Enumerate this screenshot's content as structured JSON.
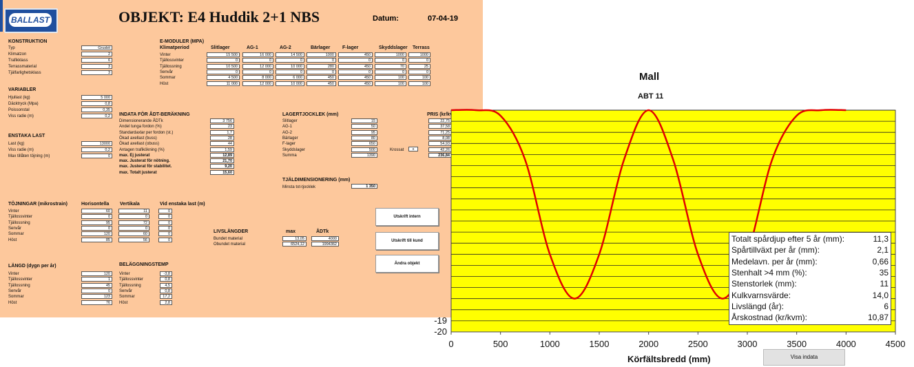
{
  "brand": "BALLAST",
  "header": {
    "title": "OBJEKT:  E4 Huddik 2+1 NBS",
    "datum_label": "Datum:",
    "datum_value": "07-04-19"
  },
  "konstruktion": {
    "heading": "KONSTRUKTION",
    "rows": [
      {
        "label": "Typ",
        "value": "Grusbit"
      },
      {
        "label": "Klimatzon",
        "value": "2"
      },
      {
        "label": "Trafikklass",
        "value": "6"
      },
      {
        "label": "Terrassmaterial",
        "value": "3"
      },
      {
        "label": "Tjälfarlighetsklass",
        "value": "3"
      }
    ]
  },
  "variabler": {
    "heading": "VARIABLER",
    "rows": [
      {
        "label": "Hjullast (kg)",
        "value": "5 000"
      },
      {
        "label": "Däcktryck (Mpa)",
        "value": "0,8"
      },
      {
        "label": "Poissonstal",
        "value": "0,35"
      },
      {
        "label": "Viss radie (m)",
        "value": "0,2"
      }
    ]
  },
  "enstaka": {
    "heading": "ENSTAKA LAST",
    "rows": [
      {
        "label": "Last (kg)",
        "value": "13000"
      },
      {
        "label": "Viss radie (m)",
        "value": "0,2"
      },
      {
        "label": "Max tillåten töjning (m)",
        "value": "0"
      }
    ]
  },
  "emoduler": {
    "heading": "E-MODULER (MPA)",
    "period_label": "Klimatperiod",
    "columns": [
      "Slitlager",
      "AG-1",
      "AG-2",
      "Bärlager",
      "F-lager",
      "Skyddslager",
      "Terrass"
    ],
    "rows": [
      {
        "label": "Vinter",
        "values": [
          "15 500",
          "16 000",
          "14 500",
          "1000",
          "450",
          "1000",
          "1000"
        ]
      },
      {
        "label": "Tjällossvinter",
        "values": [
          "0",
          "0",
          "0",
          "0",
          "0",
          "0",
          "0"
        ]
      },
      {
        "label": "Tjällossning",
        "values": [
          "10 500",
          "12 000",
          "10 000",
          "280",
          "450",
          "70",
          "25"
        ]
      },
      {
        "label": "Senvår",
        "values": [
          "0",
          "0",
          "0",
          "0",
          "0",
          "0",
          "0"
        ]
      },
      {
        "label": "Sommar",
        "values": [
          "4 500",
          "8 000",
          "6 000",
          "450",
          "450",
          "100",
          "100"
        ]
      },
      {
        "label": "Höst",
        "values": [
          "11 000",
          "12 000",
          "10 000",
          "450",
          "450",
          "100",
          "100"
        ]
      }
    ]
  },
  "indata": {
    "heading": "INDATA FÖR ÅDT-BERÄKNING",
    "rows": [
      {
        "label": "Dimensionerande ÅDTk",
        "value": "3 756",
        "bold": false
      },
      {
        "label": "Andel tunga fordon (%)",
        "value": "23",
        "bold": false
      },
      {
        "label": "Standardaxlar per fordon (st.)",
        "value": "1,7",
        "bold": false
      },
      {
        "label": "Ökad axellast (buss)",
        "value": "28",
        "bold": false
      },
      {
        "label": "Ökad axellast (obuss)",
        "value": "44",
        "bold": false
      },
      {
        "label": "Antagen trafikökning (%)",
        "value": "1,59",
        "bold": false
      },
      {
        "label": "max. Ej justerat",
        "value": "12,89",
        "bold": true
      },
      {
        "label": "max. Justerat för nötning.",
        "value": "21,70",
        "bold": true
      },
      {
        "label": "max. Justerat för stabilitet.",
        "value": "9,20",
        "bold": true
      },
      {
        "label": "max. Totalt justerat",
        "value": "15,60",
        "bold": true
      }
    ]
  },
  "lagertjocklek": {
    "heading": "LAGERTJOCKLEK (mm)",
    "rows": [
      {
        "label": "Slitlager",
        "value": "15"
      },
      {
        "label": "AG-1",
        "value": "50"
      },
      {
        "label": "AG-2",
        "value": "95"
      },
      {
        "label": "Bärlager",
        "value": "80"
      },
      {
        "label": "F-lager",
        "value": "650"
      },
      {
        "label": "Skyddslager",
        "value": "500"
      },
      {
        "label": "Summa",
        "value": "1390"
      }
    ],
    "krossat_label": "Krossat",
    "krossat_value": "x"
  },
  "pris": {
    "heading": "PRIS (kr/kvm)",
    "values": [
      "22,75",
      "37,58",
      "71,25",
      "8,08",
      "54,93",
      "42,26",
      "236,84"
    ]
  },
  "tjaldim": {
    "heading": "TJÄLDIMENSIONERING (mm)",
    "label": "Minsta tot-tjocklek",
    "value": "1 350"
  },
  "tojningar": {
    "heading": "TÖJNINGAR (mikrostrain)",
    "col_hor": "Horisontella",
    "col_vert": "Vertikala",
    "col_enst": "Vid enstaka last (m)",
    "rows": [
      {
        "label": "Vinter",
        "h": "60",
        "v": "11",
        "e": "0"
      },
      {
        "label": "Tjällossvinter",
        "h": "0",
        "v": "0",
        "e": "0"
      },
      {
        "label": "Tjällossning",
        "h": "95",
        "v": "72",
        "e": "0"
      },
      {
        "label": "Senvår",
        "h": "0",
        "v": "0",
        "e": "0"
      },
      {
        "label": "Sommar",
        "h": "120",
        "v": "60",
        "e": "0"
      },
      {
        "label": "Höst",
        "h": "85",
        "v": "56",
        "e": "0"
      }
    ]
  },
  "livslangder": {
    "heading": "LIVSLÄNGDER",
    "col1": "max",
    "col2": "ÅDTk",
    "rows": [
      {
        "label": "Bundet material",
        "v1": "13,05",
        "v2": "4000"
      },
      {
        "label": "Obundet material",
        "v1": "6524,12",
        "v2": "1994362"
      }
    ]
  },
  "langd": {
    "heading": "LÄNGD (dygn per år)",
    "rows": [
      {
        "label": "Vinter",
        "value": "120"
      },
      {
        "label": "Tjällossvinter",
        "value": "1"
      },
      {
        "label": "Tjällossning",
        "value": "45"
      },
      {
        "label": "Senvår",
        "value": "0"
      },
      {
        "label": "Sommar",
        "value": "123"
      },
      {
        "label": "Höst",
        "value": "76"
      }
    ]
  },
  "belaggning": {
    "heading": "BELÄGGNINGSTEMP",
    "rows": [
      {
        "label": "Vinter",
        "value": "-3,8"
      },
      {
        "label": "Tjällossvinter",
        "value": "0,8"
      },
      {
        "label": "Tjällossning",
        "value": "4,5"
      },
      {
        "label": "Senvår",
        "value": "0,8"
      },
      {
        "label": "Sommar",
        "value": "17,2"
      },
      {
        "label": "Höst",
        "value": "2,8"
      }
    ]
  },
  "buttons": {
    "print_internal": "Utskrift intern",
    "print_customer": "Utskrift till kund",
    "change_object": "Ändra objekt",
    "show_input": "Visa indata"
  },
  "colors": {
    "sheet_bg": "#fdc89c",
    "plot_bg": "#ffff00",
    "curve": "#e00000",
    "brand": "#1f4f9e"
  },
  "chart_data": {
    "type": "line",
    "title": "Mall",
    "subtitle": "ABT 11",
    "xlabel": "Körfältsbredd (mm)",
    "ylabel": "",
    "xlim": [
      0,
      4500
    ],
    "ylim": [
      -20,
      0
    ],
    "x_ticks": [
      "0",
      "500",
      "1000",
      "1500",
      "2000",
      "2500",
      "3000",
      "3500",
      "4000",
      "4500"
    ],
    "y_ticks_visible": [
      "-19",
      "-20"
    ],
    "grid": true,
    "series": [
      {
        "x": [
          0,
          250,
          500,
          750,
          1000,
          1250,
          1500,
          1750,
          2000,
          2250,
          2500,
          2750,
          3000,
          3250,
          3500,
          3750,
          4000
        ],
        "y": [
          0,
          0,
          -0.5,
          -4.5,
          -13,
          -17,
          -13,
          -4.5,
          0,
          -4.5,
          -13,
          -17,
          -13,
          -4.5,
          -0.5,
          0,
          0
        ]
      }
    ],
    "summary": [
      {
        "label": "Totalt spårdjup efter 5 år (mm):",
        "value": "11,3"
      },
      {
        "label": "Spårtillväxt per år (mm):",
        "value": "2,1"
      },
      {
        "label": "Medelavn. per år (mm):",
        "value": "0,66"
      },
      {
        "label": "Stenhalt >4 mm (%):",
        "value": "35"
      },
      {
        "label": "Stenstorlek (mm):",
        "value": "11"
      },
      {
        "label": "Kulkvarnsvärde:",
        "value": "14,0"
      },
      {
        "label": "Livslängd (år):",
        "value": "6"
      },
      {
        "label": "Årskostnad (kr/kvm):",
        "value": "10,87"
      }
    ]
  }
}
